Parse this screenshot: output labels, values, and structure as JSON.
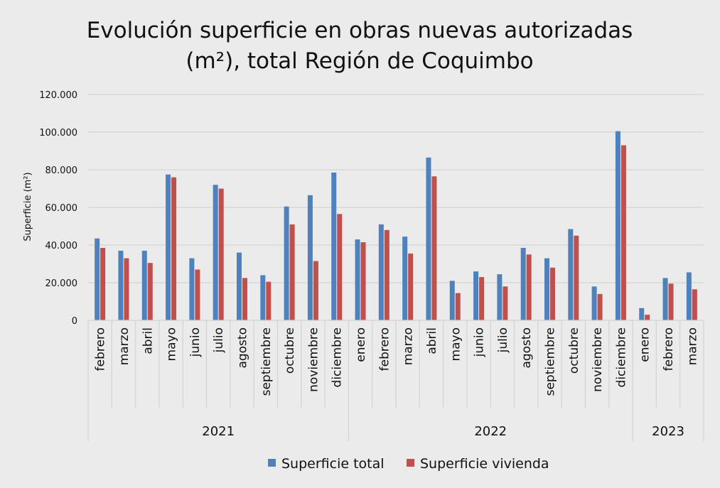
{
  "chart_data": {
    "type": "bar",
    "title_lines": [
      "Evolución superficie en obras nuevas autorizadas",
      "(m²), total Región de Coquimbo"
    ],
    "ylabel": "Superficie  (m²)",
    "xlabel": "",
    "ylim": [
      0,
      120000
    ],
    "yticks": [
      "0",
      "20.000",
      "40.000",
      "60.000",
      "80.000",
      "100.000",
      "120.000"
    ],
    "grid": true,
    "legend_position": "bottom",
    "groups": [
      {
        "year": "2021",
        "months": [
          "febrero",
          "marzo",
          "abril",
          "mayo",
          "junio",
          "julio",
          "agosto",
          "septiembre",
          "octubre",
          "noviembre",
          "diciembre"
        ]
      },
      {
        "year": "2022",
        "months": [
          "enero",
          "febrero",
          "marzo",
          "abril",
          "mayo",
          "junio",
          "julio",
          "agosto",
          "septiembre",
          "octubre",
          "noviembre",
          "diciembre"
        ]
      },
      {
        "year": "2023",
        "months": [
          "enero",
          "febrero",
          "marzo"
        ]
      }
    ],
    "series": [
      {
        "name": "Superficie total",
        "color": "#4f81bd",
        "values": [
          43500,
          37000,
          37000,
          77500,
          33000,
          72000,
          36000,
          24000,
          60500,
          66500,
          78500,
          43000,
          51000,
          44500,
          86500,
          21000,
          26000,
          24500,
          38500,
          33000,
          48500,
          18000,
          100500,
          6500,
          22500,
          25500
        ]
      },
      {
        "name": "Superficie vivienda",
        "color": "#c0504d",
        "values": [
          38500,
          33000,
          30500,
          76000,
          27000,
          70000,
          22500,
          20500,
          51000,
          31500,
          56500,
          41500,
          48000,
          35500,
          76500,
          14500,
          23000,
          18000,
          35000,
          28000,
          45000,
          14000,
          93000,
          3000,
          19500,
          16500
        ]
      }
    ]
  }
}
